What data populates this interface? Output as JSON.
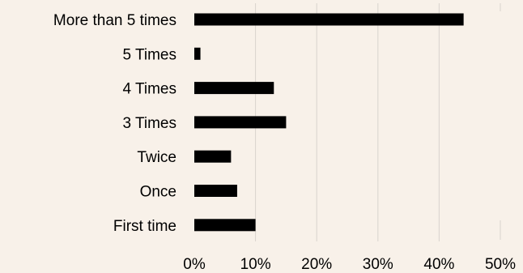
{
  "chart_data": {
    "type": "bar",
    "orientation": "horizontal",
    "title": "",
    "xlabel": "",
    "ylabel": "",
    "categories": [
      "More than 5 times",
      "5 Times",
      "4 Times",
      "3 Times",
      "Twice",
      "Once",
      "First time"
    ],
    "values": [
      44,
      1,
      13,
      15,
      6,
      7,
      10
    ],
    "xlim": [
      0,
      50
    ],
    "ticks": [
      "0%",
      "10%",
      "20%",
      "30%",
      "40%",
      "50%"
    ],
    "grid": "vertical",
    "legend": "none",
    "bar_color": "#000000",
    "grid_color": "#d9d4cd",
    "background": "#f8f1e9"
  }
}
